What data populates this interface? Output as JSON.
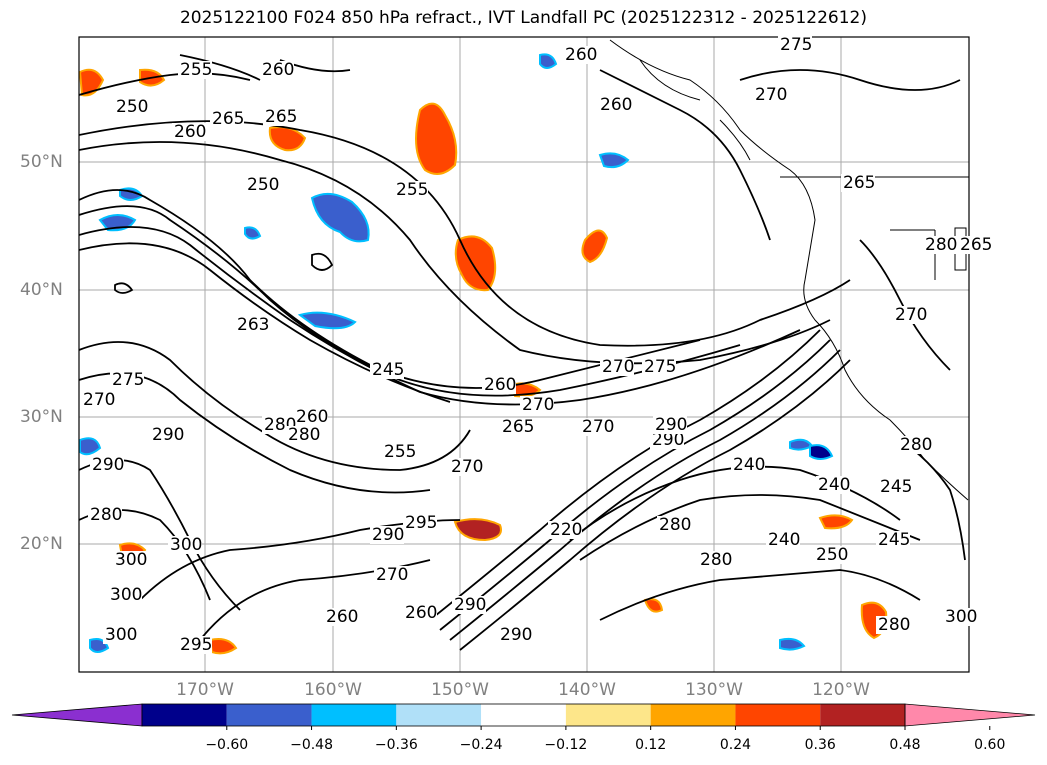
{
  "title": "2025122100 F024 850 hPa refract., IVT Landfall PC (2025122312 - 2025122612)",
  "lat_labels": [
    "50°N",
    "40°N",
    "30°N",
    "20°N"
  ],
  "lon_labels": [
    "170°W",
    "160°W",
    "150°W",
    "140°W",
    "130°W",
    "120°W"
  ],
  "contour_labels": [
    "255",
    "260",
    "265",
    "250",
    "260",
    "265",
    "250",
    "255",
    "260",
    "260",
    "270",
    "275",
    "265",
    "280",
    "270",
    "263",
    "245",
    "275",
    "260",
    "270",
    "270",
    "275",
    "270",
    "265",
    "255",
    "260",
    "280",
    "270",
    "280",
    "290",
    "290",
    "240",
    "240",
    "245",
    "245",
    "280",
    "295",
    "290",
    "300",
    "290",
    "220",
    "280",
    "240",
    "250",
    "270",
    "260",
    "260",
    "290",
    "290",
    "300",
    "300",
    "300",
    "295",
    "280",
    "300",
    "270",
    "280",
    "265",
    "280",
    "290"
  ],
  "colorbar": {
    "colors": [
      "#8b2fd0",
      "#00008b",
      "#3a5fcd",
      "#00bfff",
      "#b0e0f8",
      "#ffffff",
      "#fde68a",
      "#ffa500",
      "#ff4500",
      "#b22222",
      "#ff88aa"
    ],
    "ticks": [
      "−0.60",
      "−0.48",
      "−0.36",
      "−0.24",
      "−0.12",
      "0.12",
      "0.24",
      "0.36",
      "0.48",
      "0.60"
    ]
  }
}
